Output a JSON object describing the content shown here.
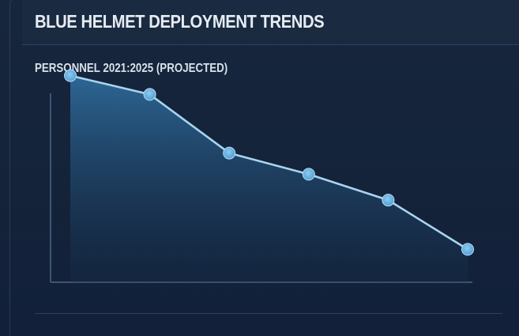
{
  "header": {
    "title": "BLUE HELMET DEPLOYMENT TRENDS"
  },
  "colors": {
    "background": "#142339",
    "line": "#a9d4ef",
    "marker": "#5aa9de",
    "area_top": "#2f6a9a",
    "axis": "#3d5573"
  },
  "chart_data": {
    "type": "area",
    "title": "PERSONNEL 2021:2025 (PROJECTED)",
    "xlabel": "",
    "ylabel": "",
    "x": [
      0,
      1,
      2,
      3,
      4,
      5
    ],
    "series": [
      {
        "values": [
          88,
          80,
          55,
          46,
          35,
          14
        ]
      }
    ],
    "ylim": [
      0,
      100
    ],
    "grid": false,
    "legend": "none"
  }
}
